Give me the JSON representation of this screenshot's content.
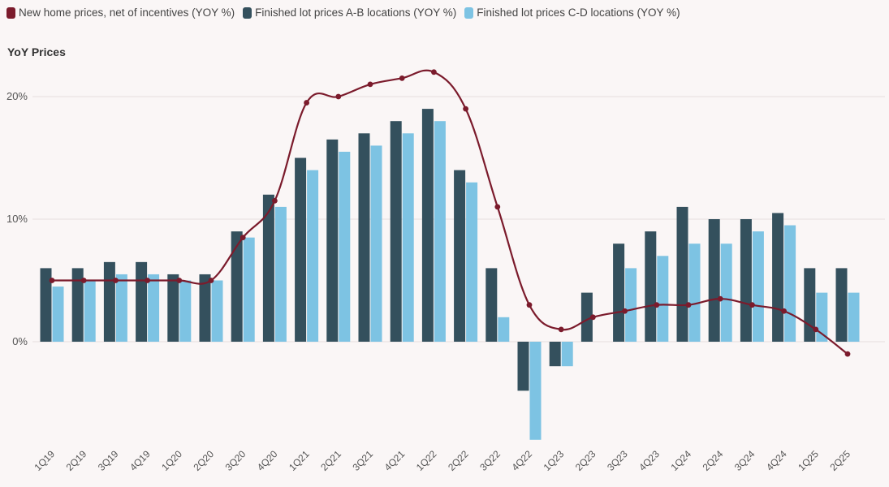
{
  "chart_data": {
    "type": "bar",
    "title": "YoY Prices",
    "xlabel": "",
    "ylabel": "",
    "ylim": [
      -8,
      22
    ],
    "yticks": [
      0,
      10,
      20
    ],
    "ytick_labels": [
      "0%",
      "10%",
      "20%"
    ],
    "categories": [
      "1Q19",
      "2Q19",
      "3Q19",
      "4Q19",
      "1Q20",
      "2Q20",
      "3Q20",
      "4Q20",
      "1Q21",
      "2Q21",
      "3Q21",
      "4Q21",
      "1Q22",
      "2Q22",
      "3Q22",
      "4Q22",
      "1Q23",
      "2Q23",
      "3Q23",
      "4Q23",
      "1Q24",
      "2Q24",
      "3Q24",
      "4Q24",
      "1Q25",
      "2Q25"
    ],
    "series": [
      {
        "name": "New home prices, net of incentives (YOY %)",
        "type": "line",
        "color": "#7b1b2c",
        "values": [
          5,
          5,
          5,
          5,
          5,
          5,
          8.5,
          11.5,
          19.5,
          20,
          21,
          21.5,
          22,
          19,
          11,
          3,
          1,
          2,
          2.5,
          3,
          3,
          3.5,
          3,
          2.5,
          1,
          -1
        ]
      },
      {
        "name": "Finished lot prices A-B locations (YOY %)",
        "type": "bar",
        "color": "#34505d",
        "values": [
          6,
          6,
          6.5,
          6.5,
          5.5,
          5.5,
          9,
          12,
          15,
          16.5,
          17,
          18,
          19,
          14,
          6,
          -4,
          -2,
          4,
          8,
          9,
          11,
          10,
          10,
          10.5,
          6,
          6
        ]
      },
      {
        "name": "Finished lot prices C-D locations (YOY %)",
        "type": "bar",
        "color": "#7dc3e3",
        "values": [
          4.5,
          5,
          5.5,
          5.5,
          5,
          5,
          8.5,
          11,
          14,
          15.5,
          16,
          17,
          18,
          13,
          2,
          -8,
          -2,
          0,
          6,
          7,
          8,
          8,
          9,
          9.5,
          4,
          4
        ]
      }
    ]
  }
}
